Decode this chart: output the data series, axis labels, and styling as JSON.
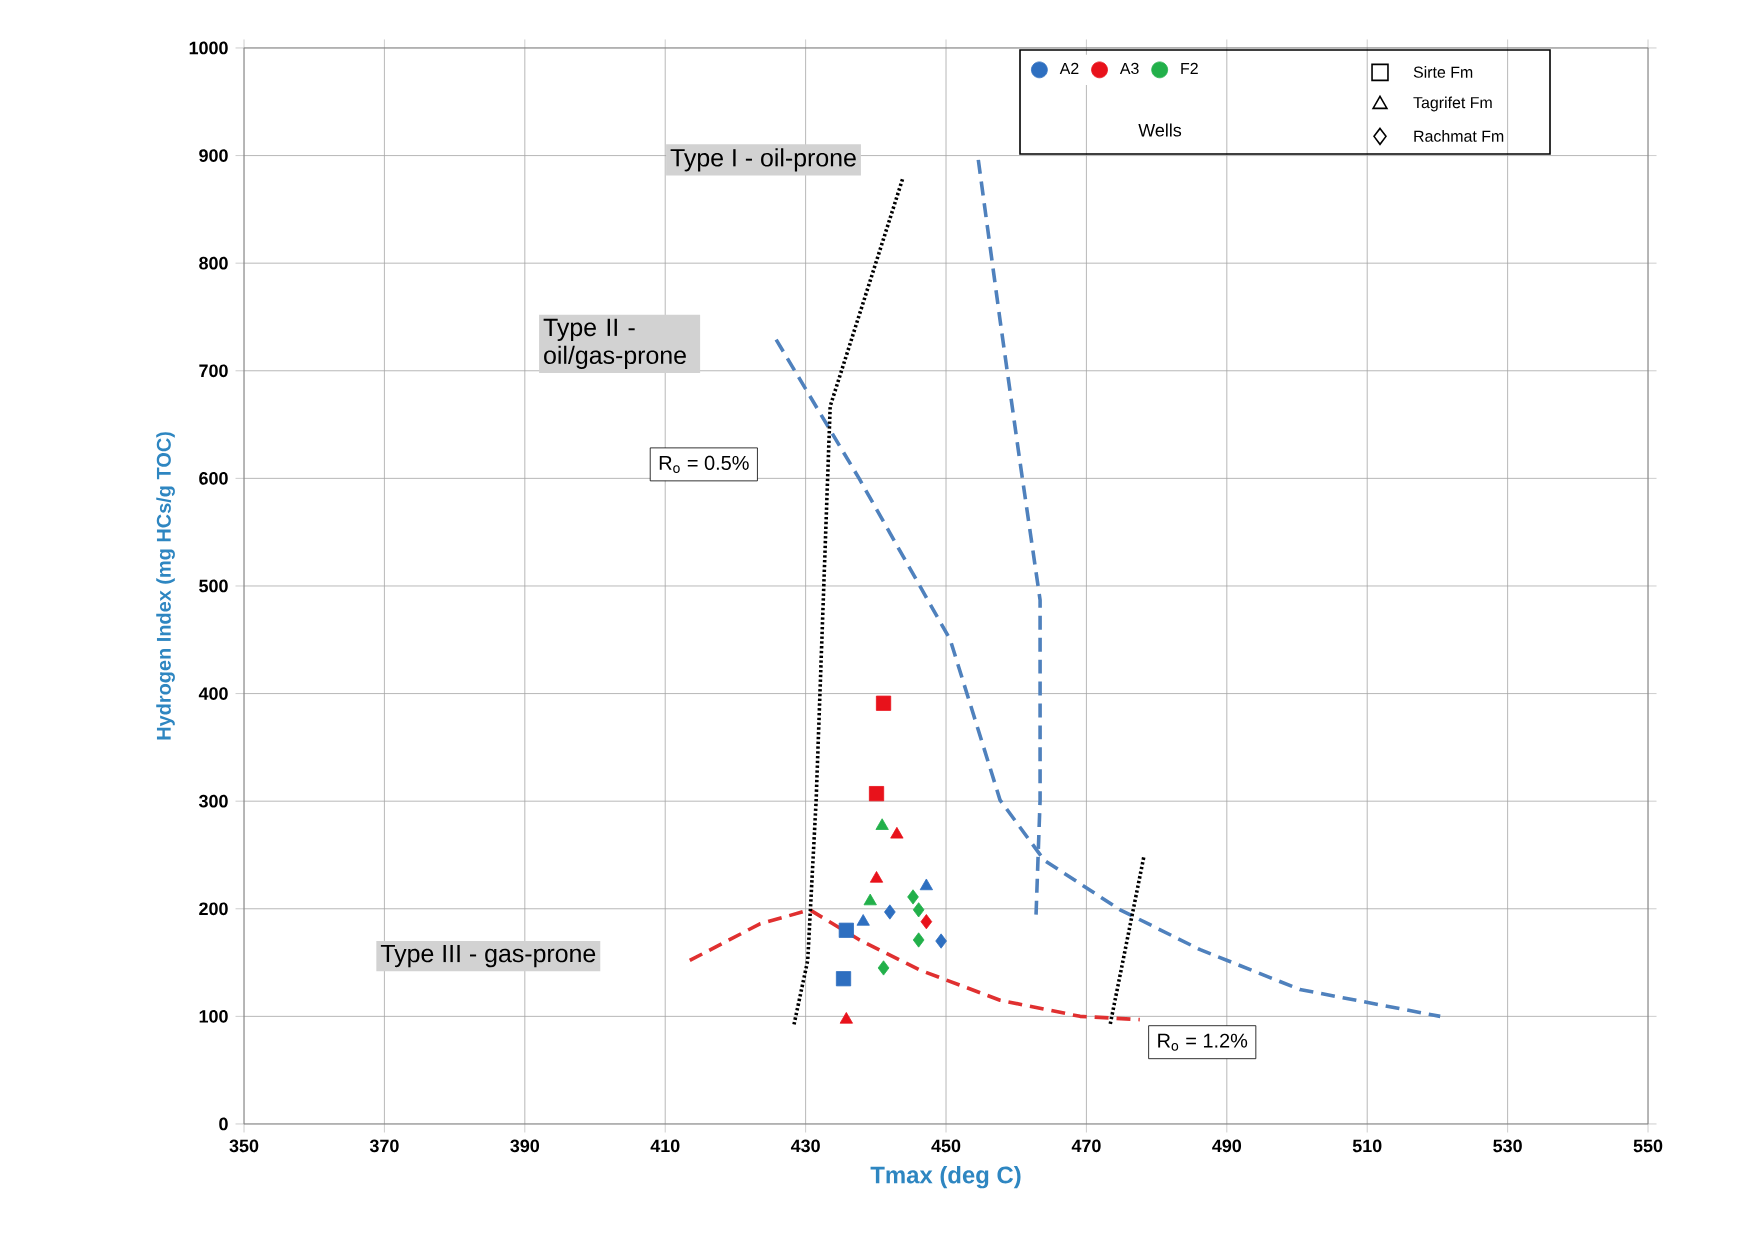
{
  "chart_data": {
    "type": "scatter",
    "xlabel": "Tmax (deg C)",
    "ylabel": "Hydrogen Index (mg HCs/g TOC)",
    "legend_title": "Wells",
    "legend": "top right",
    "grid": true,
    "xlim": [
      350,
      550
    ],
    "xticks": [
      350,
      370,
      390,
      410,
      430,
      450,
      470,
      490,
      510,
      530,
      550
    ],
    "ylim": [
      0,
      1000
    ],
    "yticks": [
      0,
      100,
      200,
      300,
      400,
      500,
      600,
      700,
      800,
      900,
      1000
    ],
    "series": [
      {
        "type": "line",
        "color": "#4f81bd",
        "line_style": "dashed",
        "marker": "none",
        "x": [
          454.6,
          457.7,
          460.5,
          463.4,
          463.4,
          462.8
        ],
        "values": [
          896,
          747,
          617,
          487,
          301,
          190
        ]
      },
      {
        "type": "line",
        "color": "#4f81bd",
        "line_style": "dashed",
        "marker": "none",
        "x": [
          425.8,
          437.7,
          450.6,
          457.7,
          464,
          474.8,
          486.2,
          500.4,
          520.4
        ],
        "values": [
          729,
          599,
          450,
          301,
          245,
          199,
          162,
          125,
          100
        ]
      },
      {
        "type": "line",
        "color": "#e03030",
        "line_style": "dashed",
        "marker": "none",
        "x": [
          413.5,
          423.5,
          430.6,
          437.7,
          446.3,
          457.7,
          469.1,
          477.6
        ],
        "values": [
          152,
          186,
          199,
          171,
          143,
          115,
          100,
          97
        ]
      },
      {
        "type": "line",
        "color": "#000000",
        "line_style": "dotted",
        "marker": "none",
        "x": [
          443.8,
          433.5,
          431.5,
          430.3,
          428.3
        ],
        "values": [
          878,
          667,
          301,
          152,
          91
        ]
      },
      {
        "type": "line",
        "color": "#000000",
        "line_style": "dotted",
        "marker": "none",
        "x": [
          473.4,
          478.2
        ],
        "values": [
          93,
          249
        ]
      },
      {
        "name": "A2",
        "color": "#2e6fc0",
        "marker": "square",
        "x": [
          435.8,
          435.4
        ],
        "values": [
          180,
          135
        ]
      },
      {
        "color": "#2e6fc0",
        "marker": "triangle",
        "x": [
          447.2,
          438.2
        ],
        "values": [
          221,
          188
        ]
      },
      {
        "color": "#2e6fc0",
        "marker": "diamond",
        "x": [
          442,
          449.3
        ],
        "values": [
          197,
          170
        ]
      },
      {
        "name": "A3",
        "color": "#e8121b",
        "marker": "square",
        "x": [
          441.1,
          440.1
        ],
        "values": [
          391,
          307
        ]
      },
      {
        "color": "#e8121b",
        "marker": "triangle",
        "x": [
          443,
          440.1,
          435.8
        ],
        "values": [
          269,
          228,
          97
        ]
      },
      {
        "color": "#e8121b",
        "marker": "diamond",
        "x": [
          447.2
        ],
        "values": [
          188
        ]
      },
      {
        "name": "F2",
        "color": "#22b04a",
        "marker": "triangle",
        "x": [
          440.9,
          439.2
        ],
        "values": [
          277,
          207
        ]
      },
      {
        "color": "#22b04a",
        "marker": "diamond",
        "x": [
          445.3,
          446.1,
          446.1,
          441.1
        ],
        "values": [
          211,
          199,
          171,
          145
        ]
      }
    ],
    "annotations": [
      "Type I - oil-prone",
      "Type II - oil/gas-prone",
      "Type III - gas-prone",
      "R$_{o}$ = 0.5%",
      "R$_{o}$ = 1.2%",
      "Sirte Fm",
      "Tagrifet Fm",
      "Rachmat Fm"
    ]
  }
}
